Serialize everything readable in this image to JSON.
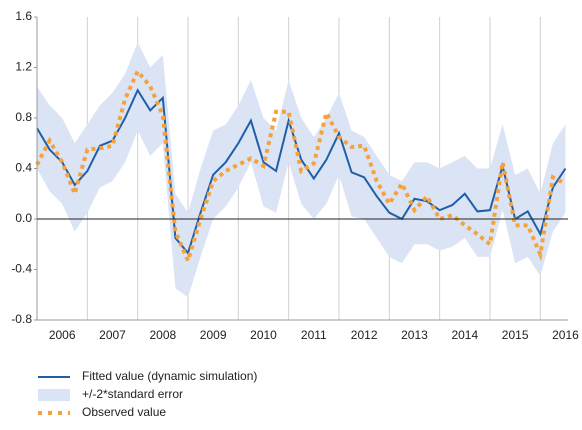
{
  "chart_data": {
    "type": "line",
    "x": [
      2006,
      2006.25,
      2006.5,
      2006.75,
      2007,
      2007.25,
      2007.5,
      2007.75,
      2008,
      2008.25,
      2008.5,
      2008.75,
      2009,
      2009.25,
      2009.5,
      2009.75,
      2010,
      2010.25,
      2010.5,
      2010.75,
      2011,
      2011.25,
      2011.5,
      2011.75,
      2012,
      2012.25,
      2012.5,
      2012.75,
      2013,
      2013.25,
      2013.5,
      2013.75,
      2014,
      2014.25,
      2014.5,
      2014.75,
      2015,
      2015.25,
      2015.5,
      2015.75,
      2016,
      2016.25,
      2016.5
    ],
    "xlim": [
      2006,
      2016.55
    ],
    "xticks": [
      {
        "value": 2006.5,
        "label": "2006"
      },
      {
        "value": 2007.5,
        "label": "2007"
      },
      {
        "value": 2008.5,
        "label": "2008"
      },
      {
        "value": 2009.5,
        "label": "2009"
      },
      {
        "value": 2010.5,
        "label": "2010"
      },
      {
        "value": 2011.5,
        "label": "2011"
      },
      {
        "value": 2012.5,
        "label": "2012"
      },
      {
        "value": 2013.5,
        "label": "2013"
      },
      {
        "value": 2014.5,
        "label": "2014"
      },
      {
        "value": 2015.5,
        "label": "2015"
      },
      {
        "value": 2016.5,
        "label": "2016"
      }
    ],
    "ylim": [
      -0.8,
      1.6
    ],
    "yticks": [
      -0.8,
      -0.4,
      {
        "value": 0,
        "label": "0.0"
      },
      0.4,
      0.8,
      1.2,
      1.6
    ],
    "series": [
      {
        "name": "Fitted value (dynamic simulation)",
        "color": "#1f5fa8",
        "style": "solid",
        "values": [
          0.72,
          0.55,
          0.45,
          0.27,
          0.38,
          0.58,
          0.62,
          0.8,
          1.02,
          0.86,
          0.96,
          -0.15,
          -0.27,
          0.05,
          0.35,
          0.45,
          0.6,
          0.78,
          0.45,
          0.38,
          0.78,
          0.47,
          0.32,
          0.47,
          0.68,
          0.37,
          0.33,
          0.18,
          0.05,
          0.0,
          0.16,
          0.14,
          0.07,
          0.11,
          0.2,
          0.06,
          0.07,
          0.42,
          0.0,
          0.06,
          -0.12,
          0.25,
          0.4
        ]
      },
      {
        "name": "+/-2*standard error",
        "color": "#dbe4f5",
        "style": "band",
        "upper": [
          1.05,
          0.9,
          0.8,
          0.6,
          0.75,
          0.9,
          1.0,
          1.15,
          1.4,
          1.2,
          1.3,
          0.2,
          0.05,
          0.4,
          0.7,
          0.75,
          0.9,
          1.1,
          0.8,
          0.7,
          1.1,
          0.8,
          0.65,
          0.8,
          1.0,
          0.7,
          0.65,
          0.5,
          0.35,
          0.3,
          0.45,
          0.45,
          0.4,
          0.45,
          0.5,
          0.4,
          0.4,
          0.75,
          0.35,
          0.4,
          0.2,
          0.6,
          0.75
        ],
        "lower": [
          0.4,
          0.22,
          0.12,
          -0.1,
          0.05,
          0.25,
          0.3,
          0.45,
          0.7,
          0.5,
          0.6,
          -0.55,
          -0.62,
          -0.3,
          0.0,
          0.1,
          0.25,
          0.45,
          0.1,
          0.05,
          0.45,
          0.12,
          0.0,
          0.12,
          0.35,
          0.02,
          0.0,
          -0.15,
          -0.3,
          -0.35,
          -0.2,
          -0.2,
          -0.25,
          -0.22,
          -0.15,
          -0.3,
          -0.3,
          0.07,
          -0.35,
          -0.3,
          -0.45,
          -0.1,
          0.05
        ]
      },
      {
        "name": "Observed value",
        "color": "#f5a23c",
        "style": "dotted",
        "values": [
          0.43,
          0.62,
          0.45,
          0.2,
          0.55,
          0.56,
          0.58,
          0.95,
          1.17,
          1.05,
          0.82,
          -0.1,
          -0.33,
          0.0,
          0.3,
          0.38,
          0.43,
          0.48,
          0.42,
          0.85,
          0.85,
          0.38,
          0.44,
          0.84,
          0.65,
          0.57,
          0.58,
          0.3,
          0.12,
          0.28,
          0.07,
          0.18,
          0.0,
          0.03,
          -0.05,
          -0.12,
          -0.2,
          0.45,
          -0.05,
          -0.05,
          -0.28,
          0.33,
          0.28
        ]
      }
    ]
  }
}
